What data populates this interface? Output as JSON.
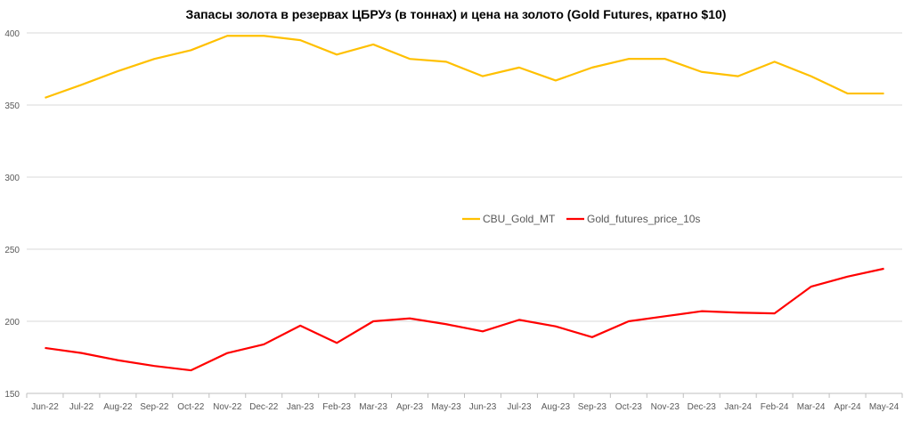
{
  "chart_data": {
    "type": "line",
    "title": "Запасы золота в резервах ЦБРУз (в тоннах) и цена на золото (Gold Futures, кратно $10)",
    "xlabel": "",
    "ylabel": "",
    "ylim": [
      150,
      400
    ],
    "yticks": [
      150,
      200,
      250,
      300,
      350,
      400
    ],
    "grid": true,
    "legend_position": "center",
    "categories": [
      "Jun-22",
      "Jul-22",
      "Aug-22",
      "Sep-22",
      "Oct-22",
      "Nov-22",
      "Dec-22",
      "Jan-23",
      "Feb-23",
      "Mar-23",
      "Apr-23",
      "May-23",
      "Jun-23",
      "Jul-23",
      "Aug-23",
      "Sep-23",
      "Oct-23",
      "Nov-23",
      "Dec-23",
      "Jan-24",
      "Feb-24",
      "Mar-24",
      "Apr-24",
      "May-24"
    ],
    "series": [
      {
        "name": "CBU_Gold_MT",
        "color": "#FFC000",
        "values": [
          355,
          364,
          373.5,
          382,
          388,
          398,
          398,
          395,
          385,
          392,
          382,
          380,
          370,
          376,
          367,
          376,
          382,
          382,
          373,
          370,
          380,
          370,
          358,
          358
        ]
      },
      {
        "name": "Gold_futures_price_10s",
        "color": "#FF0000",
        "values": [
          181.5,
          178,
          173,
          169,
          166,
          178,
          184,
          197,
          185,
          200,
          202,
          198,
          193,
          201,
          196.5,
          189,
          200,
          203.5,
          207,
          206,
          205.5,
          224,
          231,
          236.5
        ]
      }
    ]
  }
}
